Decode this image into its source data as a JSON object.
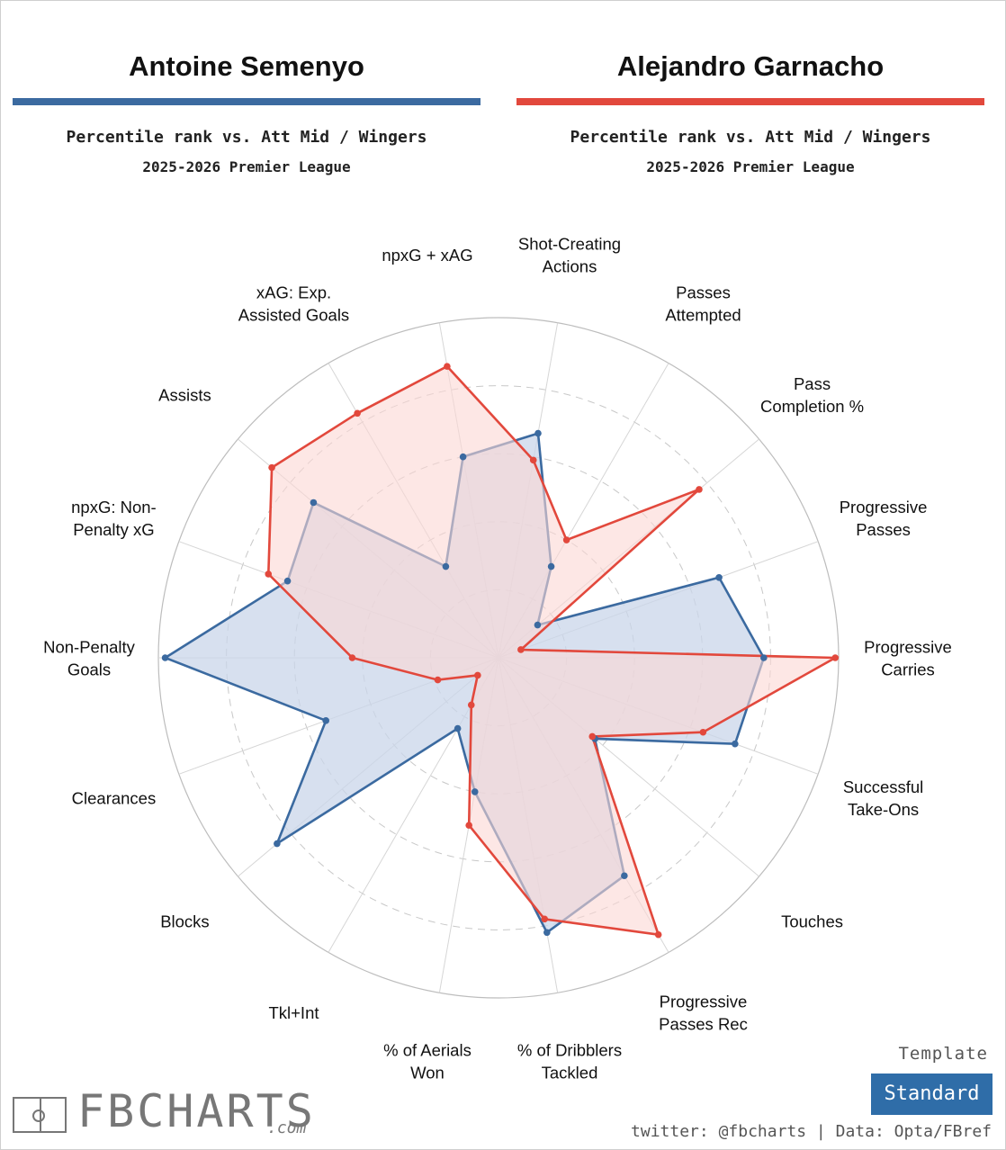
{
  "players": {
    "left": {
      "name": "Antoine Semenyo",
      "color": "#3b6aa0"
    },
    "right": {
      "name": "Alejandro Garnacho",
      "color": "#e2483c"
    }
  },
  "subtitle": {
    "comparison": "Percentile rank vs. Att Mid / Wingers",
    "season": "2025-2026 Premier League"
  },
  "chart_data": {
    "type": "radar",
    "scale": "percentile",
    "rlim": [
      0,
      100
    ],
    "grid_rings": [
      20,
      40,
      60,
      80,
      100
    ],
    "categories": [
      "Shot-Creating Actions",
      "Passes Attempted",
      "Pass Completion %",
      "Progressive Passes",
      "Progressive Carries",
      "Successful Take-Ons",
      "Touches",
      "Progressive Passes Rec",
      "% of Dribblers Tackled",
      "% of Aerials Won",
      "Tkl+Int",
      "Blocks",
      "Clearances",
      "Non-Penalty Goals",
      "npxG: Non-Penalty xG",
      "Assists",
      "xAG: Exp. Assisted Goals",
      "npxG + xAG"
    ],
    "category_lines": [
      [
        "Shot-Creating",
        "Actions"
      ],
      [
        "Passes",
        "Attempted"
      ],
      [
        "Pass",
        "Completion %"
      ],
      [
        "Progressive",
        "Passes"
      ],
      [
        "Progressive",
        "Carries"
      ],
      [
        "Successful",
        "Take-Ons"
      ],
      [
        "Touches"
      ],
      [
        "Progressive",
        "Passes Rec"
      ],
      [
        "% of Dribblers",
        "Tackled"
      ],
      [
        "% of Aerials",
        "Won"
      ],
      [
        "Tkl+Int"
      ],
      [
        "Blocks"
      ],
      [
        "Clearances"
      ],
      [
        "Non-Penalty",
        "Goals"
      ],
      [
        "npxG: Non-",
        "Penalty xG"
      ],
      [
        "Assists"
      ],
      [
        "xAG: Exp.",
        "Assisted Goals"
      ],
      [
        "npxG + xAG"
      ]
    ],
    "series": [
      {
        "name": "Antoine Semenyo",
        "color": "#3b6aa0",
        "fill": "#c9d6ea",
        "values": [
          67,
          31,
          15,
          69,
          78,
          74,
          37,
          74,
          82,
          40,
          24,
          85,
          54,
          98,
          66,
          71,
          31,
          60
        ]
      },
      {
        "name": "Alejandro Garnacho",
        "color": "#e2483c",
        "fill": "#fbd7d4",
        "values": [
          59,
          40,
          77,
          7,
          99,
          64,
          36,
          94,
          78,
          50,
          16,
          8,
          19,
          43,
          72,
          87,
          83,
          87
        ]
      }
    ]
  },
  "footer": {
    "template_label": "Template",
    "template_name": "Standard",
    "credits": "twitter: @fbcharts | Data: Opta/FBref",
    "logo_text": "FBCHARTS",
    "logo_suffix": ".com"
  }
}
